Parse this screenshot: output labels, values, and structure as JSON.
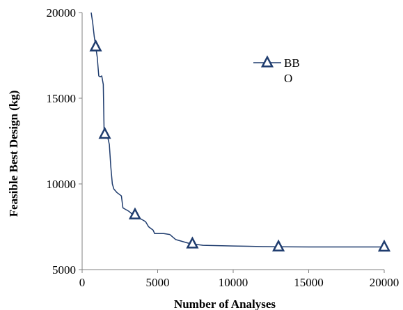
{
  "chart_data": {
    "type": "line",
    "xlabel": "Number of Analyses",
    "ylabel": "Feasible Best Design (kg)",
    "xlim": [
      0,
      20000
    ],
    "ylim": [
      5000,
      20000
    ],
    "xticks": [
      0,
      5000,
      10000,
      15000,
      20000
    ],
    "yticks": [
      5000,
      10000,
      15000,
      20000
    ],
    "x_tick_labels": [
      "0",
      "5000",
      "10000",
      "15000",
      "20000"
    ],
    "y_tick_labels": [
      "5000",
      "10000",
      "15000",
      "20000"
    ],
    "grid": false,
    "legend_position": "top-right",
    "series": [
      {
        "name": "BB\nO",
        "legend_lines": [
          "BB",
          "O"
        ],
        "color": "#1f3c6e",
        "marker": "triangle-open",
        "line": [
          [
            600,
            20000
          ],
          [
            700,
            19400
          ],
          [
            800,
            18600
          ],
          [
            900,
            18000
          ],
          [
            1000,
            17400
          ],
          [
            1100,
            16300
          ],
          [
            1200,
            16250
          ],
          [
            1300,
            16300
          ],
          [
            1400,
            15800
          ],
          [
            1450,
            13200
          ],
          [
            1500,
            12900
          ],
          [
            1600,
            12850
          ],
          [
            1700,
            12700
          ],
          [
            1800,
            12300
          ],
          [
            1900,
            11000
          ],
          [
            2000,
            10000
          ],
          [
            2100,
            9700
          ],
          [
            2300,
            9500
          ],
          [
            2600,
            9300
          ],
          [
            2700,
            8600
          ],
          [
            2900,
            8500
          ],
          [
            3100,
            8400
          ],
          [
            3300,
            8250
          ],
          [
            3500,
            8200
          ],
          [
            3700,
            8000
          ],
          [
            3900,
            7950
          ],
          [
            4200,
            7800
          ],
          [
            4400,
            7500
          ],
          [
            4700,
            7300
          ],
          [
            4800,
            7100
          ],
          [
            5400,
            7100
          ],
          [
            5800,
            7050
          ],
          [
            6200,
            6750
          ],
          [
            6600,
            6650
          ],
          [
            7000,
            6550
          ],
          [
            7300,
            6500
          ],
          [
            8000,
            6420
          ],
          [
            9000,
            6400
          ],
          [
            10000,
            6380
          ],
          [
            11000,
            6360
          ],
          [
            12000,
            6340
          ],
          [
            13000,
            6330
          ],
          [
            15000,
            6320
          ],
          [
            20000,
            6320
          ]
        ],
        "markers": [
          [
            900,
            18000
          ],
          [
            1500,
            12900
          ],
          [
            3500,
            8200
          ],
          [
            7300,
            6500
          ],
          [
            13000,
            6330
          ],
          [
            20000,
            6320
          ]
        ]
      }
    ]
  }
}
